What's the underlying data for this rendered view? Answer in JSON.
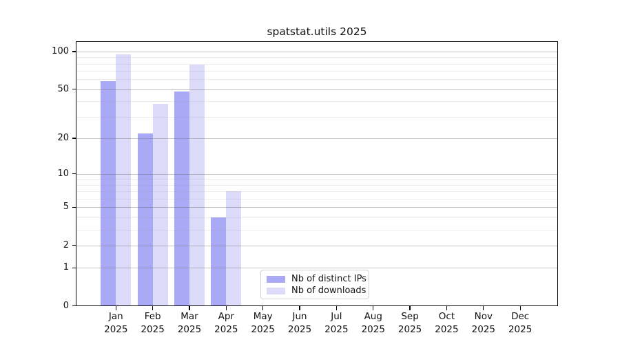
{
  "title": "spatstat.utils 2025",
  "legend": {
    "items": [
      {
        "label": "Nb of distinct IPs",
        "color": "#a9a9f6"
      },
      {
        "label": "Nb of downloads",
        "color": "#dcdcfa"
      }
    ]
  },
  "chart_data": {
    "type": "bar",
    "title": "spatstat.utils 2025",
    "y_scale": "log10(1+value)",
    "categories": [
      "Jan",
      "Feb",
      "Mar",
      "Apr",
      "May",
      "Jun",
      "Jul",
      "Aug",
      "Sep",
      "Oct",
      "Nov",
      "Dec"
    ],
    "x_tick_year": "2025",
    "series": [
      {
        "name": "Nb of distinct IPs",
        "color": "#a9a9f6",
        "values": [
          58,
          22,
          48,
          4,
          null,
          null,
          null,
          null,
          null,
          null,
          null,
          null
        ]
      },
      {
        "name": "Nb of downloads",
        "color": "#dcdcfa",
        "values": [
          95,
          38,
          79,
          7,
          null,
          null,
          null,
          null,
          null,
          null,
          null,
          null
        ]
      }
    ],
    "y_ticks": [
      0,
      1,
      2,
      5,
      10,
      20,
      50,
      100
    ],
    "y_minor_gridlines": [
      3,
      4,
      6,
      7,
      8,
      9,
      30,
      40,
      60,
      70,
      80,
      90
    ],
    "ylim": [
      0,
      118
    ],
    "grid": "on",
    "legend_position": "bottom-center-inside"
  },
  "style": {
    "background": "#ffffff",
    "axis_color": "#000000",
    "text_color": "#111111",
    "major_grid_color": "rgba(110,110,110,0.42)",
    "minor_grid_color": "rgba(150,150,150,0.18)"
  }
}
